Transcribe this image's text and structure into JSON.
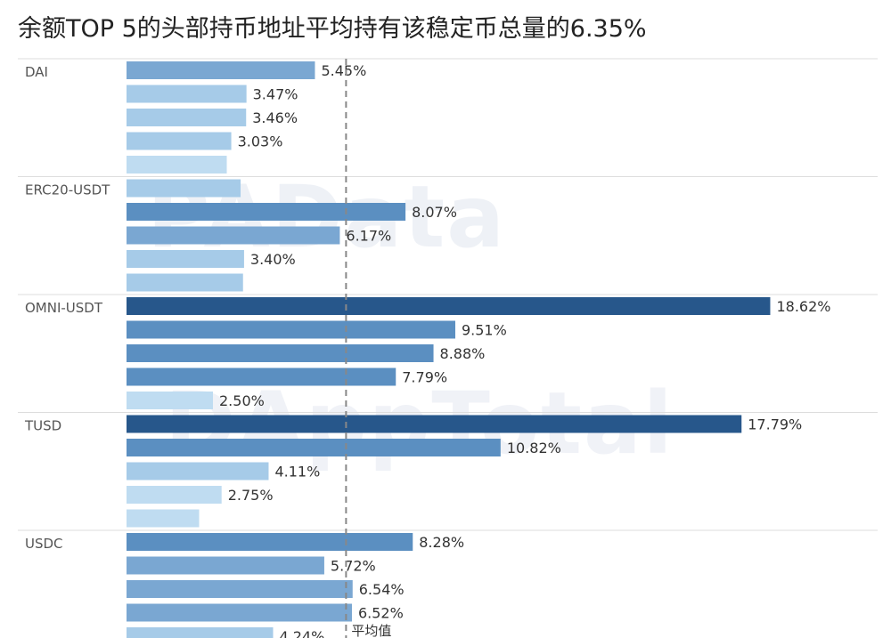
{
  "title": "余额TOP 5的头部持币地址平均持有该稳定币总量的6.35%",
  "watermarks": [
    "PAData",
    "DAppTotal"
  ],
  "chart_data": {
    "type": "bar",
    "orientation": "horizontal",
    "grid": false,
    "reference_line": {
      "value": 6.35,
      "label": "平均值",
      "style": "dashed"
    },
    "groups": [
      {
        "name": "DAI",
        "values": [
          5.45,
          3.47,
          3.46,
          3.03,
          2.9
        ],
        "labels": [
          "5.45%",
          "3.47%",
          "3.46%",
          "3.03%",
          ""
        ]
      },
      {
        "name": "ERC20-USDT",
        "values": [
          3.3,
          8.07,
          6.17,
          3.4,
          3.37
        ],
        "labels": [
          "",
          "8.07%",
          "6.17%",
          "3.40%",
          ""
        ]
      },
      {
        "name": "OMNI-USDT",
        "values": [
          18.62,
          9.51,
          8.88,
          7.79,
          2.5
        ],
        "labels": [
          "18.62%",
          "9.51%",
          "8.88%",
          "7.79%",
          "2.50%"
        ]
      },
      {
        "name": "TUSD",
        "values": [
          17.79,
          10.82,
          4.11,
          2.75,
          2.1
        ],
        "labels": [
          "17.79%",
          "10.82%",
          "4.11%",
          "2.75%",
          ""
        ]
      },
      {
        "name": "USDC",
        "values": [
          8.28,
          5.72,
          6.54,
          6.52,
          4.24
        ],
        "labels": [
          "8.28%",
          "5.72%",
          "6.54%",
          "6.52%",
          "4.24%"
        ]
      }
    ],
    "colors": {
      "darkest": "#27578b",
      "dark": "#5b8fc1",
      "mid": "#7aa7d2",
      "light": "#a6cbe8",
      "lightest": "#bfdcf1",
      "ref_line": "#888888",
      "separator": "#dddddd",
      "label": "#333333"
    }
  }
}
